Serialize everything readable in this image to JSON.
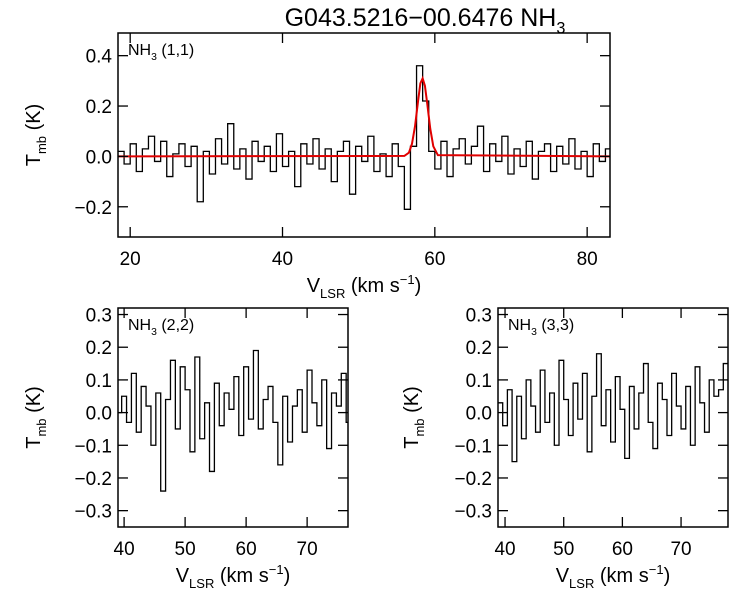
{
  "chart_data": [
    {
      "type": "line",
      "title": {
        "main": "G043.5216−00.6476 NH",
        "sub": "3"
      },
      "annotation": {
        "main": "NH",
        "sub": "3",
        "rest": " (1,1)"
      },
      "ylabel": {
        "main": "T",
        "sub": "mb",
        "rest": " (K)"
      },
      "xlabel": {
        "main": "V",
        "sub": "LSR",
        "rest": " (km s",
        "sup": "−1",
        "end": ")"
      },
      "xlim": [
        18.4,
        83
      ],
      "ylim": [
        -0.32,
        0.49
      ],
      "xticks": [
        20,
        40,
        60,
        80
      ],
      "yticks": [
        {
          "value": -0.2,
          "label": "−0.2"
        },
        {
          "value": 0,
          "label": "0.0"
        },
        0.2,
        0.4
      ],
      "series": [
        {
          "color": "#000000",
          "step": true,
          "x": [
            18.8,
            19.6,
            20.4,
            21.2,
            22.0,
            22.8,
            23.6,
            24.4,
            25.2,
            26.0,
            26.8,
            27.6,
            28.4,
            29.2,
            30.0,
            30.8,
            31.6,
            32.4,
            33.2,
            34.0,
            34.8,
            35.6,
            36.4,
            37.2,
            38.0,
            38.8,
            39.6,
            40.4,
            41.2,
            42.0,
            42.8,
            43.6,
            44.4,
            45.2,
            46.0,
            46.8,
            47.6,
            48.4,
            49.2,
            50.0,
            50.8,
            51.6,
            52.4,
            53.2,
            54.0,
            54.8,
            55.6,
            56.4,
            57.2,
            58.0,
            58.8,
            59.6,
            60.4,
            61.2,
            62.0,
            62.8,
            63.6,
            64.4,
            65.2,
            66.0,
            66.8,
            67.6,
            68.4,
            69.2,
            70.0,
            70.8,
            71.6,
            72.4,
            73.2,
            74.0,
            74.8,
            75.6,
            76.4,
            77.2,
            78.0,
            78.8,
            79.6,
            80.4,
            81.2,
            82.0,
            82.8
          ],
          "values": [
            0.02,
            -0.03,
            0.05,
            -0.06,
            0.03,
            0.08,
            -0.02,
            0.06,
            -0.08,
            0.01,
            0.05,
            -0.04,
            0.04,
            -0.18,
            0.02,
            -0.07,
            0.07,
            -0.03,
            0.13,
            -0.05,
            0.03,
            -0.09,
            0.06,
            -0.02,
            0.04,
            -0.06,
            0.09,
            -0.04,
            0.02,
            -0.12,
            0.05,
            -0.03,
            0.07,
            -0.05,
            0.03,
            -0.1,
            0.02,
            0.06,
            -0.15,
            0.04,
            -0.02,
            0.08,
            -0.06,
            0.01,
            -0.08,
            0.05,
            -0.04,
            -0.21,
            0.04,
            0.36,
            0.22,
            0.02,
            -0.05,
            0.06,
            -0.08,
            0.03,
            0.07,
            -0.03,
            0.04,
            0.12,
            -0.06,
            0.05,
            -0.02,
            0.08,
            -0.07,
            0.03,
            -0.04,
            0.06,
            -0.09,
            0.02,
            0.05,
            -0.06,
            0.04,
            -0.03,
            0.07,
            -0.05,
            0.02,
            -0.08,
            0.05,
            -0.02,
            0.03
          ]
        },
        {
          "color": "#e00000",
          "step": false,
          "x": [
            18.4,
            56.0,
            56.6,
            57.0,
            57.4,
            57.8,
            58.1,
            58.4,
            58.7,
            59.0,
            59.4,
            59.8,
            60.4,
            83.0
          ],
          "values": [
            0,
            0.002,
            0.015,
            0.05,
            0.12,
            0.22,
            0.29,
            0.31,
            0.28,
            0.21,
            0.11,
            0.04,
            0.005,
            0
          ]
        }
      ]
    },
    {
      "type": "line",
      "annotation": {
        "main": "NH",
        "sub": "3",
        "rest": " (2,2)"
      },
      "ylabel": {
        "main": "T",
        "sub": "mb",
        "rest": " (K)"
      },
      "xlabel": {
        "main": "V",
        "sub": "LSR",
        "rest": " (km s",
        "sup": "−1",
        "end": ")"
      },
      "xlim": [
        39,
        76.7
      ],
      "ylim": [
        -0.35,
        0.32
      ],
      "xticks": [
        40,
        50,
        60,
        70
      ],
      "yticks": [
        {
          "value": -0.3,
          "label": "−0.3"
        },
        {
          "value": -0.2,
          "label": "−0.2"
        },
        {
          "value": -0.1,
          "label": "−0.1"
        },
        {
          "value": 0,
          "label": "0.0"
        },
        0.1,
        0.2,
        0.3
      ],
      "series": [
        {
          "color": "#000000",
          "step": true,
          "x": [
            39.2,
            40.0,
            40.8,
            41.6,
            42.4,
            43.2,
            44.0,
            44.8,
            45.6,
            46.4,
            47.2,
            48.0,
            48.8,
            49.6,
            50.4,
            51.2,
            52.0,
            52.8,
            53.6,
            54.4,
            55.2,
            56.0,
            56.8,
            57.6,
            58.4,
            59.2,
            60.0,
            60.8,
            61.6,
            62.4,
            63.2,
            64.0,
            64.8,
            65.6,
            66.4,
            67.2,
            68.0,
            68.8,
            69.6,
            70.4,
            71.2,
            72.0,
            72.8,
            73.6,
            74.4,
            75.2,
            76.0,
            76.8
          ],
          "values": [
            0.0,
            0.05,
            -0.03,
            0.12,
            -0.06,
            0.08,
            0.02,
            -0.1,
            0.06,
            -0.24,
            0.04,
            0.16,
            -0.05,
            0.14,
            0.07,
            -0.12,
            0.17,
            -0.08,
            0.03,
            -0.18,
            0.09,
            -0.04,
            0.06,
            0.01,
            0.11,
            -0.07,
            0.14,
            -0.02,
            0.19,
            -0.05,
            0.04,
            0.08,
            -0.03,
            -0.16,
            0.05,
            -0.09,
            0.02,
            0.07,
            -0.06,
            0.13,
            0.03,
            -0.04,
            0.1,
            -0.11,
            0.06,
            0.02,
            0.12,
            -0.03
          ]
        }
      ]
    },
    {
      "type": "line",
      "annotation": {
        "main": "NH",
        "sub": "3",
        "rest": " (3,3)"
      },
      "ylabel": {
        "main": "T",
        "sub": "mb",
        "rest": " (K)"
      },
      "xlabel": {
        "main": "V",
        "sub": "LSR",
        "rest": " (km s",
        "sup": "−1",
        "end": ")"
      },
      "xlim": [
        38.8,
        78
      ],
      "ylim": [
        -0.35,
        0.32
      ],
      "xticks": [
        40,
        50,
        60,
        70
      ],
      "yticks": [
        {
          "value": -0.3,
          "label": "−0.3"
        },
        {
          "value": -0.2,
          "label": "−0.2"
        },
        {
          "value": -0.1,
          "label": "−0.1"
        },
        {
          "value": 0,
          "label": "0.0"
        },
        0.1,
        0.2,
        0.3
      ],
      "series": [
        {
          "color": "#000000",
          "step": true,
          "x": [
            39.2,
            40.0,
            40.8,
            41.6,
            42.4,
            43.2,
            44.0,
            44.8,
            45.6,
            46.4,
            47.2,
            48.0,
            48.8,
            49.6,
            50.4,
            51.2,
            52.0,
            52.8,
            53.6,
            54.4,
            55.2,
            56.0,
            56.8,
            57.6,
            58.4,
            59.2,
            60.0,
            60.8,
            61.6,
            62.4,
            63.2,
            64.0,
            64.8,
            65.6,
            66.4,
            67.2,
            68.0,
            68.8,
            69.6,
            70.4,
            71.2,
            72.0,
            72.8,
            73.6,
            74.4,
            75.2,
            76.0,
            76.8,
            77.6
          ],
          "values": [
            0.03,
            -0.04,
            0.07,
            -0.15,
            0.05,
            -0.08,
            0.1,
            0.02,
            -0.06,
            0.13,
            -0.03,
            0.06,
            -0.1,
            0.16,
            0.04,
            -0.07,
            0.09,
            -0.02,
            0.12,
            -0.12,
            0.05,
            0.18,
            -0.04,
            0.07,
            -0.09,
            0.11,
            0.01,
            -0.14,
            0.08,
            -0.05,
            0.06,
            0.15,
            -0.03,
            -0.11,
            0.09,
            0.04,
            -0.07,
            0.12,
            0.02,
            -0.05,
            0.08,
            -0.1,
            0.14,
            0.03,
            -0.06,
            0.1,
            0.05,
            0.07,
            0.15
          ]
        }
      ]
    }
  ]
}
